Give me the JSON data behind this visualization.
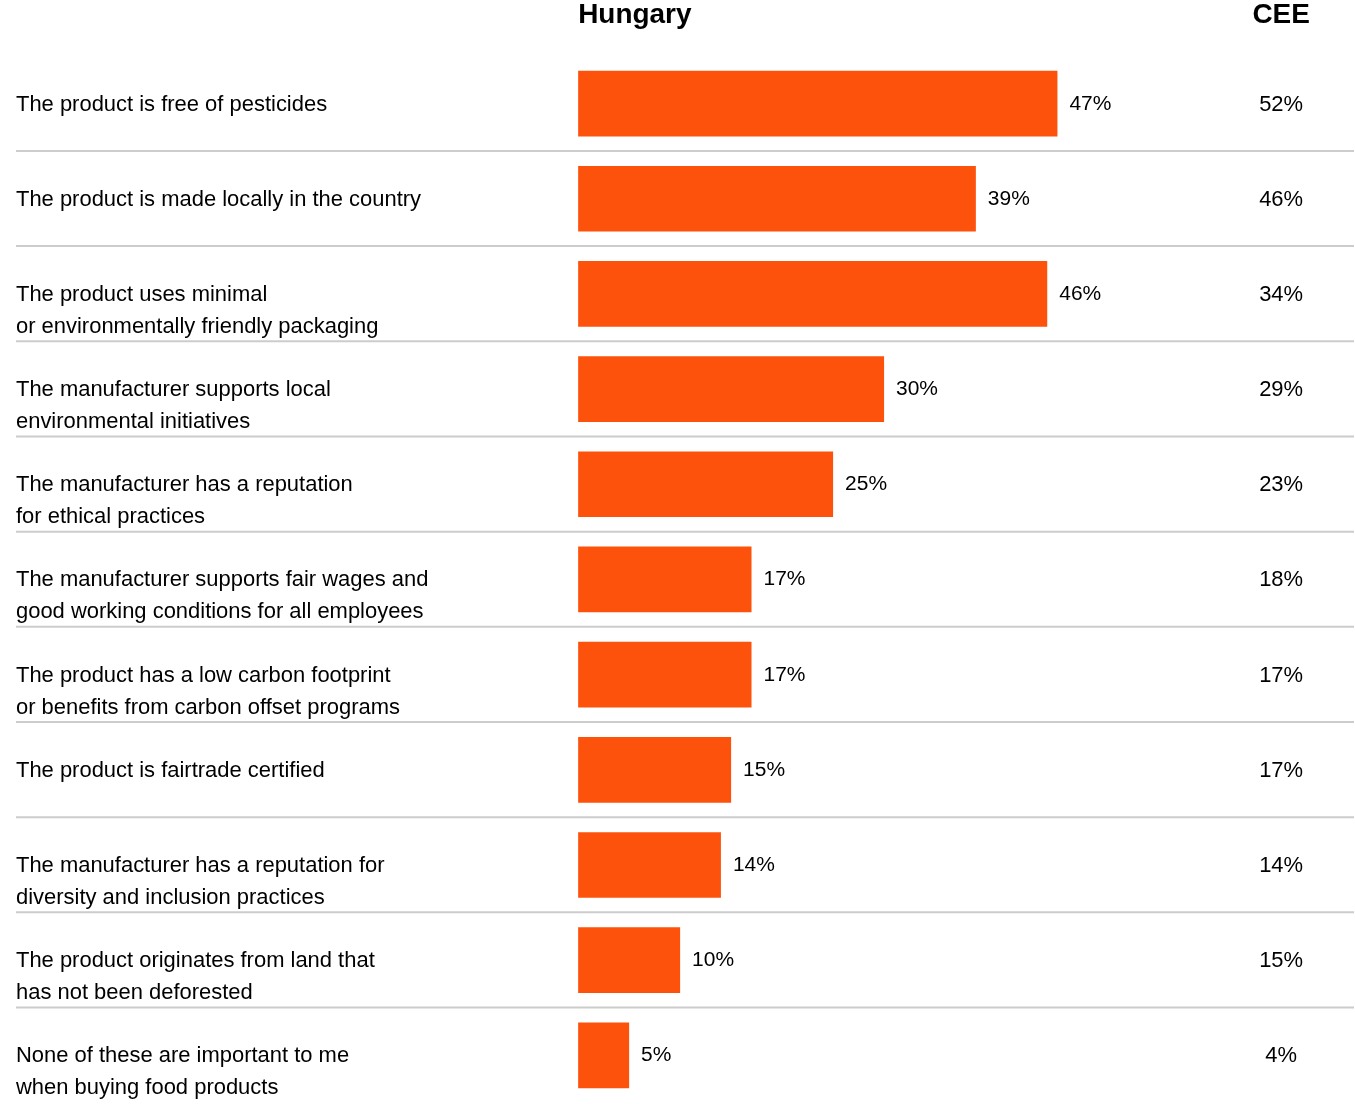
{
  "chart_data": [
    {
      "type": "bar",
      "orientation": "horizontal",
      "title": "Hungary",
      "color": "#fd520b",
      "grid": "y",
      "categories": [
        "The product is free of pesticides",
        "The product is made locally in the country",
        "The product uses minimal\nor environmentally friendly packaging",
        "The manufacturer supports local\nenvironmental initiatives",
        "The manufacturer has a reputation\nfor ethical practices",
        "The manufacturer supports fair wages and\ngood working conditions for all employees",
        "The product has a low carbon footprint\nor benefits from carbon offset programs",
        "The product is fairtrade certified",
        "The manufacturer has a reputation for\ndiversity and inclusion practices",
        "The product originates from land that\nhas not been deforested",
        "None of these are important to me\nwhen buying food products"
      ],
      "values": [
        47,
        39,
        46,
        30,
        25,
        17,
        17,
        15,
        14,
        10,
        5
      ],
      "value_labels": [
        "47%",
        "39%",
        "46%",
        "30%",
        "25%",
        "17%",
        "17%",
        "15%",
        "14%",
        "10%",
        "5%"
      ]
    },
    {
      "type": "other",
      "title": "CEE",
      "categories": [
        null,
        null,
        null,
        null,
        null,
        null,
        null,
        null,
        null,
        null,
        null
      ],
      "values": [
        52,
        46,
        34,
        29,
        23,
        18,
        17,
        17,
        14,
        15,
        4
      ],
      "value_labels": [
        "52%",
        "46%",
        "34%",
        "29%",
        "23%",
        "18%",
        "17%",
        "17%",
        "14%",
        "15%",
        "4%"
      ]
    }
  ]
}
